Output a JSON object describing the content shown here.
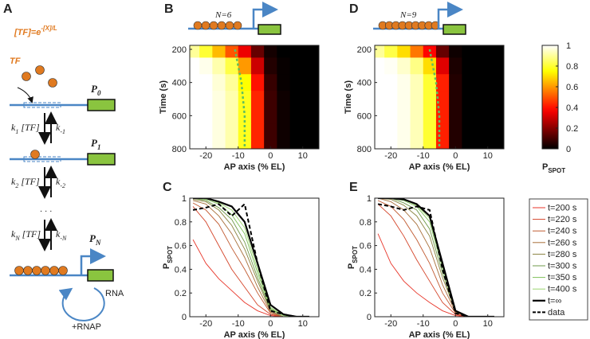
{
  "panel_labels": [
    "A",
    "B",
    "C",
    "D",
    "E"
  ],
  "diagram": {
    "concentration": "[TF]=e",
    "exponent": "-[X]/L",
    "tf": "TF",
    "states": [
      {
        "main": "P",
        "sub": "0"
      },
      {
        "main": "P",
        "sub": "1"
      },
      {
        "main": "P",
        "sub": "N"
      }
    ],
    "rates": [
      {
        "fwd": [
          "k",
          "1",
          " [TF]"
        ],
        "back": [
          "k",
          "-1"
        ]
      },
      {
        "fwd": [
          "k",
          "2",
          " [TF]"
        ],
        "back": [
          "k",
          "-2"
        ]
      },
      {
        "fwd": [
          "k",
          "N",
          " [TF]"
        ],
        "back": [
          "k",
          "-N"
        ]
      }
    ],
    "ellipsis": ". . .",
    "rna": "RNA",
    "rnap": "+RNAP"
  },
  "chart_data": [
    {
      "type": "heatmap",
      "construct": {
        "label": "N=6",
        "sites": 6
      },
      "xlabel": "AP axis (% EL)",
      "ylabel": "Time (s)",
      "colormap": "hot",
      "x": [
        -24,
        -20,
        -16,
        -12,
        -8,
        -4,
        0,
        4,
        8,
        12
      ],
      "y": [
        200,
        300,
        400,
        500,
        600,
        700,
        800
      ],
      "z": [
        [
          0.9,
          0.8,
          0.65,
          0.5,
          0.35,
          0.15,
          0.03,
          0,
          0,
          0
        ],
        [
          1,
          0.98,
          0.92,
          0.82,
          0.6,
          0.3,
          0.05,
          0.01,
          0,
          0
        ],
        [
          1,
          1,
          0.96,
          0.9,
          0.75,
          0.4,
          0.08,
          0.01,
          0,
          0
        ],
        [
          1,
          1,
          0.97,
          0.92,
          0.78,
          0.43,
          0.09,
          0.02,
          0,
          0
        ],
        [
          1,
          1,
          0.97,
          0.92,
          0.78,
          0.43,
          0.09,
          0.02,
          0,
          0
        ],
        [
          1,
          1,
          0.97,
          0.92,
          0.78,
          0.43,
          0.09,
          0.02,
          0,
          0
        ],
        [
          1,
          1,
          0.97,
          0.92,
          0.78,
          0.43,
          0.09,
          0.02,
          0,
          0
        ]
      ],
      "boundary": {
        "x": [
          -11,
          -9,
          -8,
          -8
        ],
        "y": [
          200,
          400,
          600,
          800
        ],
        "color": "#5fbf5f"
      },
      "xlim": [
        -25,
        15
      ],
      "xticks": [
        -20,
        -10,
        0,
        10
      ],
      "ylim": [
        800,
        176
      ],
      "yticks": [
        200,
        400,
        600,
        800
      ]
    },
    {
      "type": "heatmap",
      "construct": {
        "label": "N=9",
        "sites": 9
      },
      "xlabel": "AP axis (% EL)",
      "ylabel": "Time (s)",
      "colormap": "hot",
      "x": [
        -24,
        -20,
        -16,
        -12,
        -8,
        -4,
        0,
        4,
        8,
        12
      ],
      "y": [
        200,
        300,
        400,
        500,
        600,
        700,
        800
      ],
      "z": [
        [
          0.9,
          0.82,
          0.7,
          0.55,
          0.38,
          0.15,
          0.02,
          0,
          0,
          0
        ],
        [
          1,
          0.99,
          0.95,
          0.88,
          0.7,
          0.33,
          0.04,
          0,
          0,
          0
        ],
        [
          1,
          1,
          0.98,
          0.93,
          0.8,
          0.42,
          0.05,
          0,
          0,
          0
        ],
        [
          1,
          1,
          0.98,
          0.93,
          0.8,
          0.42,
          0.05,
          0,
          0,
          0
        ],
        [
          1,
          1,
          0.98,
          0.93,
          0.8,
          0.42,
          0.05,
          0,
          0,
          0
        ],
        [
          1,
          1,
          0.98,
          0.93,
          0.8,
          0.42,
          0.05,
          0,
          0,
          0
        ],
        [
          1,
          1,
          0.98,
          0.93,
          0.8,
          0.42,
          0.05,
          0,
          0,
          0
        ]
      ],
      "boundary": {
        "x": [
          -8,
          -6,
          -5,
          -5
        ],
        "y": [
          200,
          400,
          600,
          800
        ],
        "color": "#5fbf5f"
      },
      "xlim": [
        -25,
        15
      ],
      "xticks": [
        -20,
        -10,
        0,
        10
      ],
      "ylim": [
        800,
        176
      ],
      "yticks": [
        200,
        400,
        600,
        800
      ],
      "colorbar": {
        "lim": [
          0,
          1
        ],
        "ticks": [
          0,
          0.2,
          0.4,
          0.6,
          0.8,
          1
        ],
        "label": {
          "main": "P",
          "sub": "SPOT"
        }
      }
    },
    {
      "type": "line",
      "xlabel": "AP axis (% EL)",
      "ylabel": {
        "main": "P",
        "sub": "SPOT"
      },
      "x": [
        -24,
        -20,
        -16,
        -12,
        -8,
        -4,
        0,
        4,
        8,
        12
      ],
      "xlim": [
        -25,
        15
      ],
      "xticks": [
        -20,
        -10,
        0,
        10
      ],
      "ylim": [
        0,
        1
      ],
      "yticks": [
        0,
        0.2,
        0.4,
        0.6,
        0.8,
        1
      ],
      "series": [
        {
          "name": "t=200 s",
          "color": "#e8362a",
          "values": [
            0.65,
            0.45,
            0.32,
            0.22,
            0.12,
            0.05,
            0.01,
            0,
            0,
            0
          ]
        },
        {
          "name": "t=220 s",
          "color": "#d4452a",
          "values": [
            0.93,
            0.8,
            0.6,
            0.4,
            0.25,
            0.1,
            0.02,
            0,
            0,
            0
          ]
        },
        {
          "name": "t=240 s",
          "color": "#c05a30",
          "values": [
            0.96,
            0.9,
            0.78,
            0.58,
            0.4,
            0.2,
            0.03,
            0,
            0,
            0
          ]
        },
        {
          "name": "t=260 s",
          "color": "#a8703a",
          "values": [
            0.98,
            0.95,
            0.85,
            0.7,
            0.5,
            0.25,
            0.04,
            0,
            0,
            0
          ]
        },
        {
          "name": "t=280 s",
          "color": "#8a8440",
          "values": [
            0.99,
            0.97,
            0.9,
            0.77,
            0.57,
            0.3,
            0.05,
            0,
            0,
            0
          ]
        },
        {
          "name": "t=300 s",
          "color": "#6f9a48",
          "values": [
            1,
            0.98,
            0.92,
            0.82,
            0.63,
            0.33,
            0.06,
            0.01,
            0,
            0
          ]
        },
        {
          "name": "t=350 s",
          "color": "#7fc05a",
          "values": [
            1,
            0.99,
            0.95,
            0.86,
            0.7,
            0.37,
            0.07,
            0.01,
            0,
            0
          ]
        },
        {
          "name": "t=400 s",
          "color": "#9ad46e",
          "values": [
            1,
            1,
            0.96,
            0.9,
            0.75,
            0.4,
            0.08,
            0.01,
            0,
            0
          ]
        },
        {
          "name": "t=∞",
          "color": "#000000",
          "width": 2.2,
          "values": [
            1,
            1,
            0.97,
            0.93,
            0.8,
            0.45,
            0.1,
            0.02,
            0,
            0
          ]
        },
        {
          "name": "data",
          "color": "#000000",
          "dash": true,
          "values": [
            0.9,
            0.92,
            0.95,
            0.85,
            0.95,
            0.45,
            0.05,
            0.02,
            0,
            0
          ]
        }
      ]
    },
    {
      "type": "line",
      "xlabel": "AP axis (% EL)",
      "ylabel": {
        "main": "P",
        "sub": "SPOT"
      },
      "x": [
        -24,
        -20,
        -16,
        -12,
        -8,
        -4,
        0,
        4,
        8,
        12
      ],
      "xlim": [
        -25,
        15
      ],
      "xticks": [
        -20,
        -10,
        0,
        10
      ],
      "ylim": [
        0,
        1
      ],
      "yticks": [
        0,
        0.2,
        0.4,
        0.6,
        0.8,
        1
      ],
      "legend": "right",
      "series": [
        {
          "name": "t=200 s",
          "color": "#e8362a",
          "values": [
            0.7,
            0.45,
            0.3,
            0.2,
            0.12,
            0.05,
            0.01,
            0,
            0,
            0
          ]
        },
        {
          "name": "t=220 s",
          "color": "#d4452a",
          "values": [
            0.95,
            0.85,
            0.68,
            0.48,
            0.3,
            0.12,
            0.02,
            0,
            0,
            0
          ]
        },
        {
          "name": "t=240 s",
          "color": "#c05a30",
          "values": [
            0.98,
            0.93,
            0.82,
            0.65,
            0.45,
            0.2,
            0.03,
            0,
            0,
            0
          ]
        },
        {
          "name": "t=260 s",
          "color": "#a8703a",
          "values": [
            1,
            0.97,
            0.9,
            0.78,
            0.58,
            0.27,
            0.04,
            0,
            0,
            0
          ]
        },
        {
          "name": "t=280 s",
          "color": "#8a8440",
          "values": [
            1,
            0.99,
            0.94,
            0.85,
            0.68,
            0.33,
            0.05,
            0,
            0,
            0
          ]
        },
        {
          "name": "t=300 s",
          "color": "#6f9a48",
          "values": [
            1,
            1,
            0.96,
            0.9,
            0.74,
            0.37,
            0.05,
            0,
            0,
            0
          ]
        },
        {
          "name": "t=350 s",
          "color": "#7fc05a",
          "values": [
            1,
            1,
            0.98,
            0.93,
            0.8,
            0.41,
            0.05,
            0,
            0,
            0
          ]
        },
        {
          "name": "t=400 s",
          "color": "#9ad46e",
          "values": [
            1,
            1,
            0.99,
            0.94,
            0.83,
            0.43,
            0.05,
            0,
            0,
            0
          ]
        },
        {
          "name": "t=∞",
          "color": "#000000",
          "width": 2.2,
          "values": [
            1,
            1,
            0.99,
            0.95,
            0.85,
            0.45,
            0.05,
            0,
            0,
            0
          ]
        },
        {
          "name": "data",
          "color": "#000000",
          "dash": true,
          "values": [
            0.95,
            0.93,
            0.9,
            0.93,
            0.9,
            0.4,
            0.03,
            0,
            0,
            0
          ]
        }
      ]
    }
  ]
}
